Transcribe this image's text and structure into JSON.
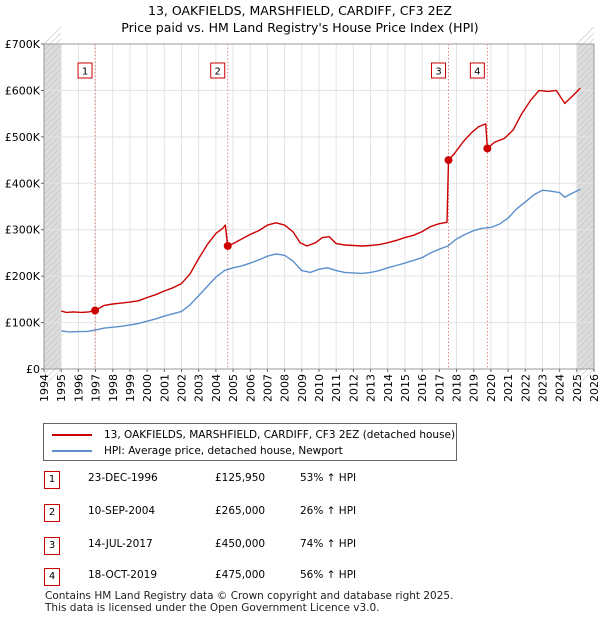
{
  "chart_data": {
    "type": "line",
    "title": "13, OAKFIELDS, MARSHFIELD, CARDIFF, CF3 2EZ",
    "subtitle": "Price paid vs. HM Land Registry's House Price Index (HPI)",
    "xlim": [
      1994,
      2026
    ],
    "ylim": [
      0,
      700000
    ],
    "x_ticks": [
      "1994",
      "1995",
      "1996",
      "1997",
      "1998",
      "1999",
      "2000",
      "2001",
      "2002",
      "2003",
      "2004",
      "2005",
      "2006",
      "2007",
      "2008",
      "2009",
      "2010",
      "2011",
      "2012",
      "2013",
      "2014",
      "2015",
      "2016",
      "2017",
      "2018",
      "2019",
      "2020",
      "2021",
      "2022",
      "2023",
      "2024",
      "2025",
      "2026"
    ],
    "y_ticks": [
      {
        "value": 0,
        "label": "£0"
      },
      {
        "value": 100000,
        "label": "£100K"
      },
      {
        "value": 200000,
        "label": "£200K"
      },
      {
        "value": 300000,
        "label": "£300K"
      },
      {
        "value": 400000,
        "label": "£400K"
      },
      {
        "value": 500000,
        "label": "£500K"
      },
      {
        "value": 600000,
        "label": "£600K"
      },
      {
        "value": 700000,
        "label": "£700K"
      }
    ],
    "series": [
      {
        "name": "13, OAKFIELDS, MARSHFIELD, CARDIFF, CF3 2EZ (detached house)",
        "color": "#cc0000",
        "points": [
          [
            1995.0,
            125000
          ],
          [
            1995.3,
            122000
          ],
          [
            1995.7,
            123000
          ],
          [
            1996.2,
            122000
          ],
          [
            1996.6,
            123000
          ],
          [
            1996.97,
            125950
          ],
          [
            1997.5,
            137000
          ],
          [
            1998.0,
            140000
          ],
          [
            1998.5,
            142000
          ],
          [
            1999.0,
            144000
          ],
          [
            1999.5,
            147000
          ],
          [
            2000.0,
            154000
          ],
          [
            2000.5,
            160000
          ],
          [
            2001.0,
            168000
          ],
          [
            2001.5,
            175000
          ],
          [
            2002.0,
            184000
          ],
          [
            2002.5,
            205000
          ],
          [
            2003.0,
            238000
          ],
          [
            2003.5,
            268000
          ],
          [
            2004.0,
            292000
          ],
          [
            2004.4,
            303000
          ],
          [
            2004.55,
            310000
          ],
          [
            2004.69,
            265000
          ],
          [
            2005.0,
            270000
          ],
          [
            2005.5,
            280000
          ],
          [
            2006.0,
            290000
          ],
          [
            2006.5,
            298000
          ],
          [
            2007.0,
            310000
          ],
          [
            2007.5,
            315000
          ],
          [
            2008.0,
            310000
          ],
          [
            2008.5,
            295000
          ],
          [
            2008.9,
            272000
          ],
          [
            2009.3,
            265000
          ],
          [
            2009.8,
            272000
          ],
          [
            2010.2,
            283000
          ],
          [
            2010.6,
            285000
          ],
          [
            2011.0,
            270000
          ],
          [
            2011.5,
            267000
          ],
          [
            2012.0,
            266000
          ],
          [
            2012.5,
            265000
          ],
          [
            2013.0,
            266000
          ],
          [
            2013.5,
            268000
          ],
          [
            2014.0,
            272000
          ],
          [
            2014.5,
            277000
          ],
          [
            2015.0,
            283000
          ],
          [
            2015.5,
            288000
          ],
          [
            2016.0,
            296000
          ],
          [
            2016.5,
            307000
          ],
          [
            2017.0,
            313000
          ],
          [
            2017.45,
            316000
          ],
          [
            2017.535,
            450000
          ],
          [
            2017.9,
            465000
          ],
          [
            2018.4,
            490000
          ],
          [
            2018.9,
            510000
          ],
          [
            2019.3,
            522000
          ],
          [
            2019.7,
            528000
          ],
          [
            2019.795,
            475000
          ],
          [
            2020.2,
            488000
          ],
          [
            2020.8,
            497000
          ],
          [
            2021.3,
            515000
          ],
          [
            2021.8,
            550000
          ],
          [
            2022.3,
            578000
          ],
          [
            2022.8,
            600000
          ],
          [
            2023.3,
            598000
          ],
          [
            2023.8,
            600000
          ],
          [
            2024.3,
            572000
          ],
          [
            2024.8,
            590000
          ],
          [
            2025.2,
            605000
          ]
        ]
      },
      {
        "name": "HPI: Average price, detached house, Newport",
        "color": "#5b8fcc",
        "points": [
          [
            1995.0,
            82000
          ],
          [
            1995.5,
            80000
          ],
          [
            1996.0,
            80500
          ],
          [
            1996.5,
            81000
          ],
          [
            1997.0,
            84000
          ],
          [
            1997.5,
            88000
          ],
          [
            1998.0,
            90000
          ],
          [
            1998.5,
            92000
          ],
          [
            1999.0,
            95000
          ],
          [
            1999.5,
            98000
          ],
          [
            2000.0,
            103000
          ],
          [
            2000.5,
            108000
          ],
          [
            2001.0,
            114000
          ],
          [
            2001.5,
            119000
          ],
          [
            2002.0,
            124000
          ],
          [
            2002.5,
            138000
          ],
          [
            2003.0,
            158000
          ],
          [
            2003.5,
            178000
          ],
          [
            2004.0,
            198000
          ],
          [
            2004.5,
            212000
          ],
          [
            2005.0,
            218000
          ],
          [
            2005.5,
            222000
          ],
          [
            2006.0,
            228000
          ],
          [
            2006.5,
            235000
          ],
          [
            2007.0,
            243000
          ],
          [
            2007.5,
            248000
          ],
          [
            2008.0,
            245000
          ],
          [
            2008.5,
            232000
          ],
          [
            2009.0,
            212000
          ],
          [
            2009.5,
            208000
          ],
          [
            2010.0,
            215000
          ],
          [
            2010.5,
            218000
          ],
          [
            2011.0,
            212000
          ],
          [
            2011.5,
            208000
          ],
          [
            2012.0,
            207000
          ],
          [
            2012.5,
            206000
          ],
          [
            2013.0,
            208000
          ],
          [
            2013.5,
            212000
          ],
          [
            2014.0,
            218000
          ],
          [
            2014.5,
            223000
          ],
          [
            2015.0,
            228000
          ],
          [
            2015.5,
            234000
          ],
          [
            2016.0,
            240000
          ],
          [
            2016.5,
            250000
          ],
          [
            2017.0,
            258000
          ],
          [
            2017.5,
            265000
          ],
          [
            2018.0,
            280000
          ],
          [
            2018.5,
            290000
          ],
          [
            2019.0,
            298000
          ],
          [
            2019.5,
            303000
          ],
          [
            2020.0,
            305000
          ],
          [
            2020.5,
            312000
          ],
          [
            2021.0,
            325000
          ],
          [
            2021.5,
            345000
          ],
          [
            2022.0,
            360000
          ],
          [
            2022.5,
            375000
          ],
          [
            2023.0,
            385000
          ],
          [
            2023.5,
            383000
          ],
          [
            2024.0,
            380000
          ],
          [
            2024.3,
            370000
          ],
          [
            2024.7,
            378000
          ],
          [
            2025.2,
            387000
          ]
        ]
      }
    ],
    "sales": [
      {
        "num": "1",
        "x": 1996.97,
        "price": 125950
      },
      {
        "num": "2",
        "x": 2004.69,
        "price": 265000
      },
      {
        "num": "3",
        "x": 2017.535,
        "price": 450000
      },
      {
        "num": "4",
        "x": 2019.795,
        "price": 475000
      }
    ],
    "shaded_ranges": [
      [
        1994,
        1995
      ],
      [
        2025.0,
        2026
      ]
    ],
    "legend_position": "below-chart"
  },
  "legend": {
    "property_label": "13, OAKFIELDS, MARSHFIELD, CARDIFF, CF3 2EZ (detached house)",
    "hpi_label": "HPI: Average price, detached house, Newport"
  },
  "sales_table": [
    {
      "num": "1",
      "date": "23-DEC-1996",
      "price": "£125,950",
      "hpi": "53% ↑ HPI"
    },
    {
      "num": "2",
      "date": "10-SEP-2004",
      "price": "£265,000",
      "hpi": "26% ↑ HPI"
    },
    {
      "num": "3",
      "date": "14-JUL-2017",
      "price": "£450,000",
      "hpi": "74% ↑ HPI"
    },
    {
      "num": "4",
      "date": "18-OCT-2019",
      "price": "£475,000",
      "hpi": "56% ↑ HPI"
    }
  ],
  "footer": {
    "line1": "Contains HM Land Registry data © Crown copyright and database right 2025.",
    "line2": "This data is licensed under the Open Government Licence v3.0."
  }
}
